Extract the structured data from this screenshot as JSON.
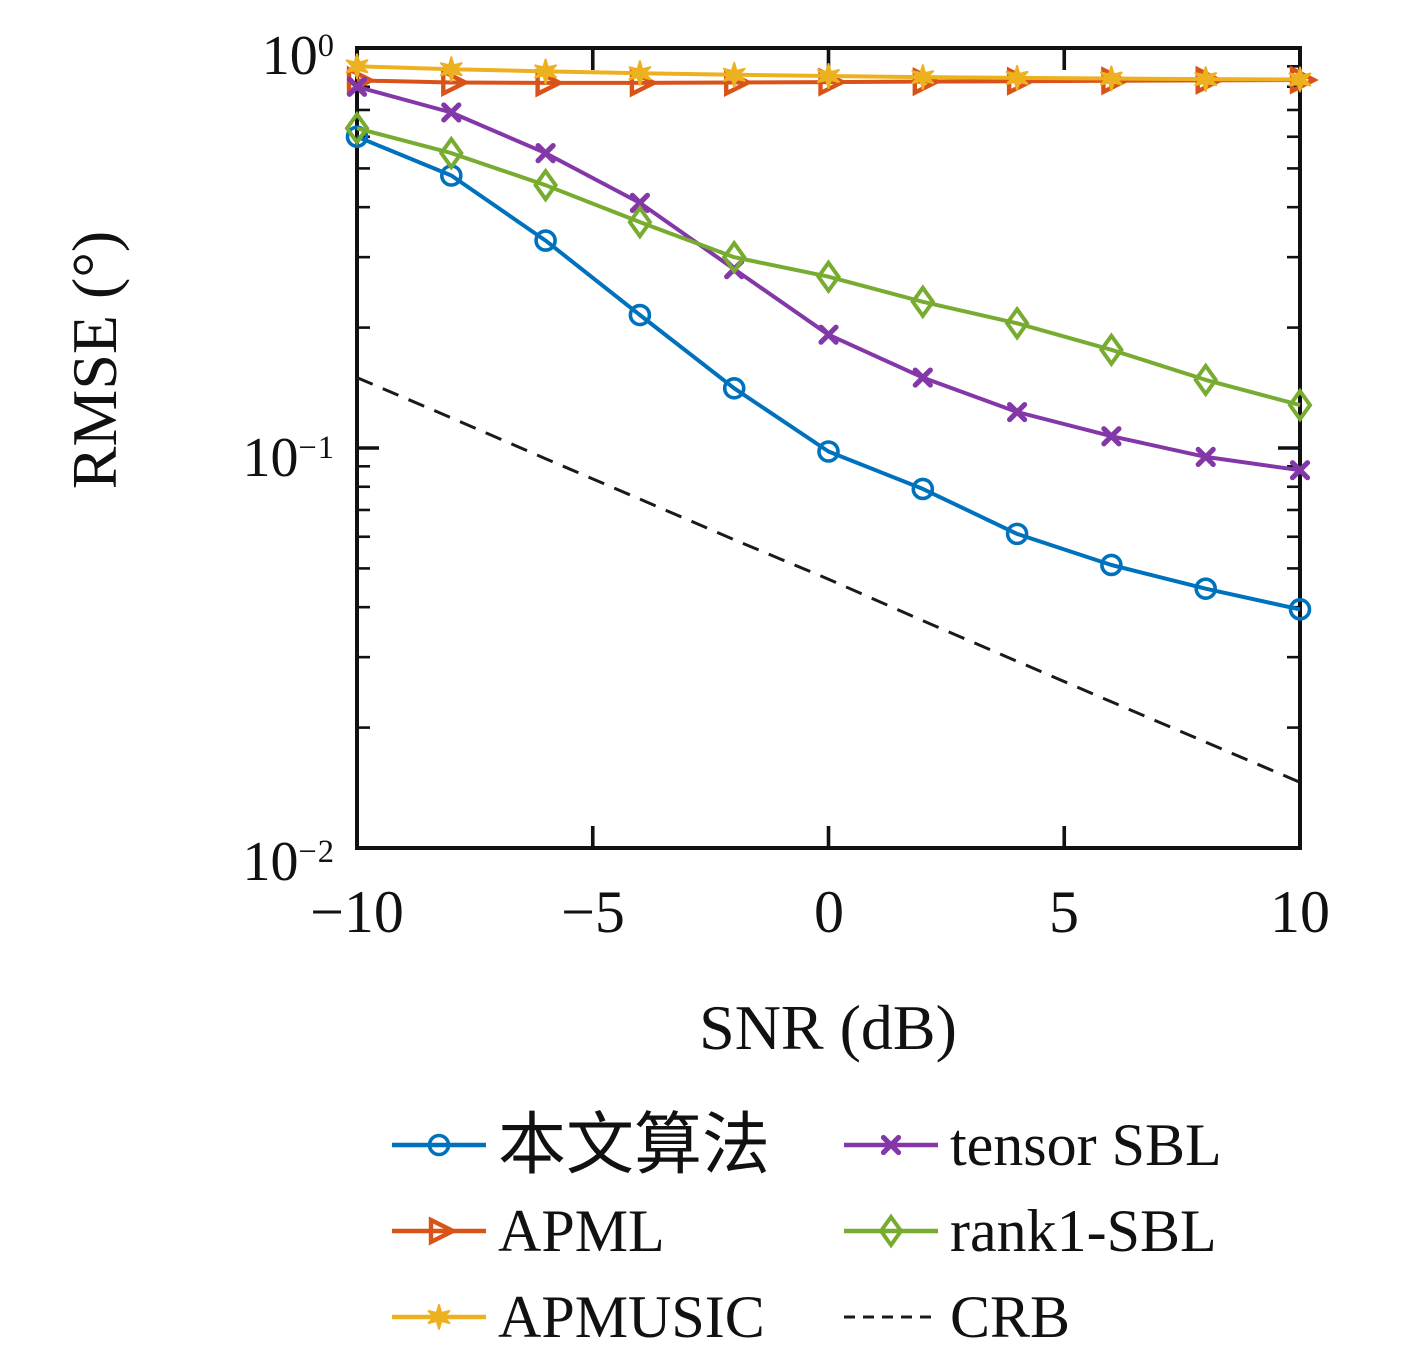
{
  "chart_data": {
    "type": "line",
    "title": "",
    "xlabel": "SNR (dB)",
    "ylabel": "RMSE (°)",
    "xlim": [
      -10,
      10
    ],
    "ylim": [
      0.01,
      1
    ],
    "yscale": "log",
    "grid": false,
    "x": [
      -10,
      -8,
      -6,
      -4,
      -2,
      0,
      2,
      4,
      6,
      8,
      10
    ],
    "x_tick_values": [
      -10,
      -5,
      0,
      5,
      10
    ],
    "x_tick_labels": [
      "−10",
      "−5",
      "0",
      "5",
      "10"
    ],
    "y_tick_values": [
      1,
      0.1,
      0.01
    ],
    "y_tick_labels": [
      {
        "base": "10",
        "exp": "0"
      },
      {
        "base": "10",
        "exp": "−1"
      },
      {
        "base": "10",
        "exp": "−2"
      }
    ],
    "series": [
      {
        "name": "本文算法",
        "color": "#0072BD",
        "marker": "circle",
        "line": "solid",
        "values": [
          0.6,
          0.48,
          0.33,
          0.215,
          0.141,
          0.098,
          0.079,
          0.061,
          0.051,
          0.0445,
          0.0395
        ]
      },
      {
        "name": "APML",
        "color": "#D95319",
        "marker": "triangle-right",
        "line": "solid",
        "values": [
          0.83,
          0.82,
          0.818,
          0.818,
          0.82,
          0.822,
          0.824,
          0.826,
          0.828,
          0.83,
          0.832
        ]
      },
      {
        "name": "APMUSIC",
        "color": "#EDB120",
        "marker": "star",
        "line": "solid",
        "values": [
          0.9,
          0.885,
          0.874,
          0.865,
          0.857,
          0.851,
          0.846,
          0.842,
          0.839,
          0.836,
          0.834
        ]
      },
      {
        "name": "tensor SBL",
        "color": "#8438A8",
        "marker": "x",
        "line": "solid",
        "values": [
          0.8,
          0.69,
          0.546,
          0.41,
          0.28,
          0.192,
          0.15,
          0.123,
          0.107,
          0.095,
          0.088
        ]
      },
      {
        "name": "rank1-SBL",
        "color": "#77AC30",
        "marker": "diamond",
        "line": "solid",
        "values": [
          0.63,
          0.546,
          0.454,
          0.367,
          0.3,
          0.268,
          0.232,
          0.205,
          0.176,
          0.148,
          0.128
        ]
      },
      {
        "name": "CRB",
        "color": "#1a1a1a",
        "marker": "none",
        "line": "dashed",
        "values": [
          0.15,
          0.119,
          0.094,
          0.0745,
          0.059,
          0.047,
          0.037,
          0.0293,
          0.0232,
          0.0184,
          0.0146
        ]
      }
    ],
    "legend": {
      "position": "below",
      "columns": 2,
      "row_major_order": [
        "本文算法",
        "tensor SBL",
        "APML",
        "rank1-SBL",
        "APMUSIC",
        "CRB"
      ]
    }
  }
}
